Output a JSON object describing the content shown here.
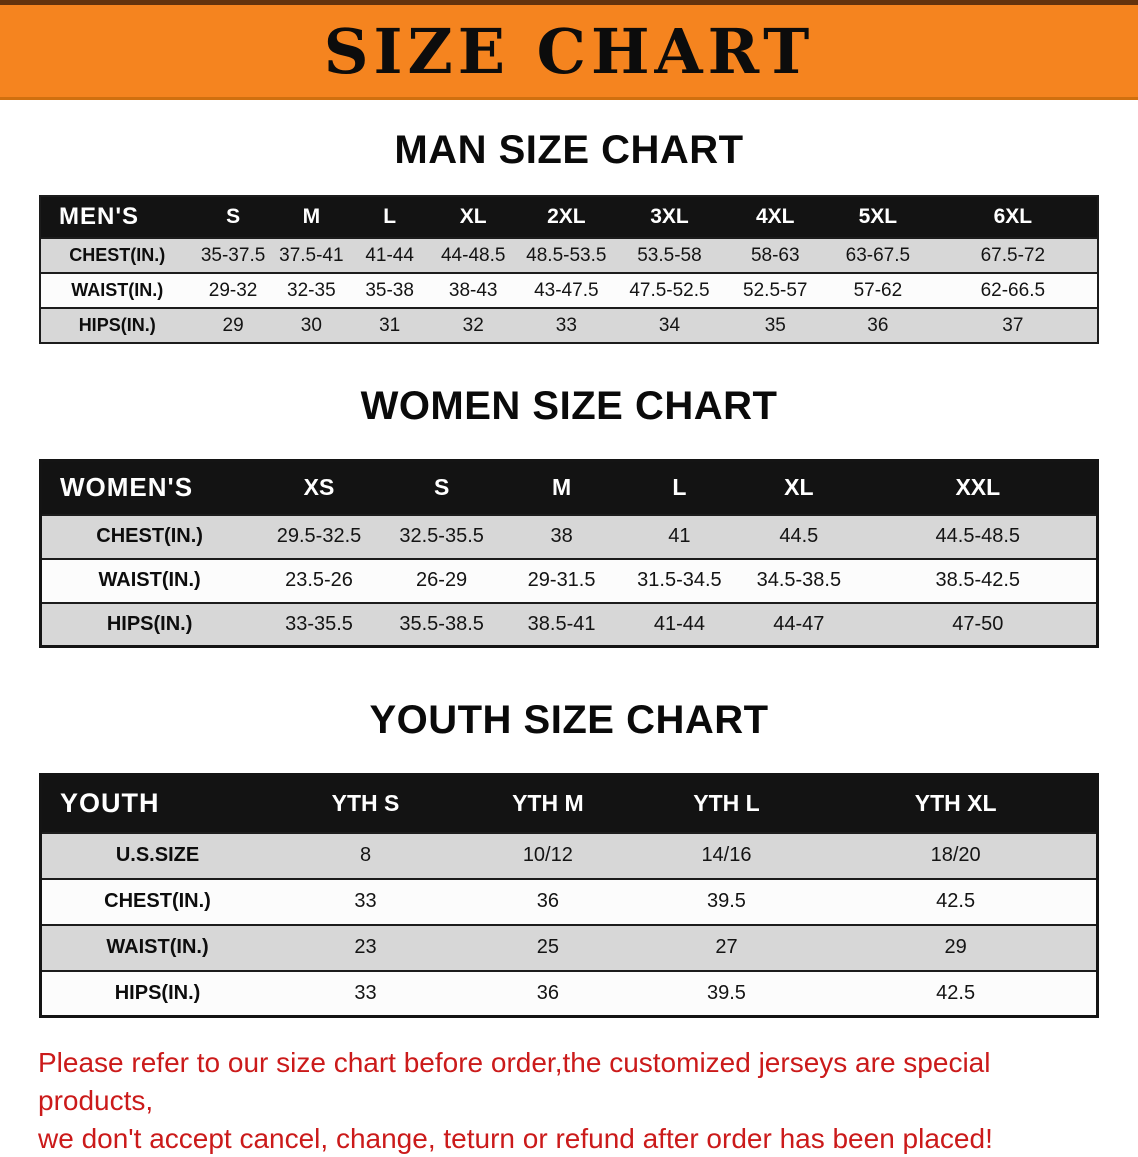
{
  "banner": {
    "title": "SIZE CHART"
  },
  "sections": [
    {
      "heading": "MAN SIZE CHART",
      "table": {
        "header": [
          "MEN'S",
          "S",
          "M",
          "L",
          "XL",
          "2XL",
          "3XL",
          "4XL",
          "5XL",
          "6XL"
        ],
        "rows": [
          [
            "CHEST(IN.)",
            "35-37.5",
            "37.5-41",
            "41-44",
            "44-48.5",
            "48.5-53.5",
            "53.5-58",
            "58-63",
            "63-67.5",
            "67.5-72"
          ],
          [
            "WAIST(IN.)",
            "29-32",
            "32-35",
            "35-38",
            "38-43",
            "43-47.5",
            "47.5-52.5",
            "52.5-57",
            "57-62",
            "62-66.5"
          ],
          [
            "HIPS(IN.)",
            "29",
            "30",
            "31",
            "32",
            "33",
            "34",
            "35",
            "36",
            "37"
          ]
        ]
      }
    },
    {
      "heading": "WOMEN SIZE CHART",
      "table": {
        "header": [
          "WOMEN'S",
          "XS",
          "S",
          "M",
          "L",
          "XL",
          "XXL"
        ],
        "rows": [
          [
            "CHEST(IN.)",
            "29.5-32.5",
            "32.5-35.5",
            "38",
            "41",
            "44.5",
            "44.5-48.5"
          ],
          [
            "WAIST(IN.)",
            "23.5-26",
            "26-29",
            "29-31.5",
            "31.5-34.5",
            "34.5-38.5",
            "38.5-42.5"
          ],
          [
            "HIPS(IN.)",
            "33-35.5",
            "35.5-38.5",
            "38.5-41",
            "41-44",
            "44-47",
            "47-50"
          ]
        ]
      }
    },
    {
      "heading": "YOUTH SIZE CHART",
      "table": {
        "header": [
          "YOUTH",
          "YTH S",
          "YTH M",
          "YTH L",
          "YTH XL"
        ],
        "rows": [
          [
            "U.S.SIZE",
            "8",
            "10/12",
            "14/16",
            "18/20"
          ],
          [
            "CHEST(IN.)",
            "33",
            "36",
            "39.5",
            "42.5"
          ],
          [
            "WAIST(IN.)",
            "23",
            "25",
            "27",
            "29"
          ],
          [
            "HIPS(IN.)",
            "33",
            "36",
            "39.5",
            "42.5"
          ]
        ]
      }
    }
  ],
  "disclaimer": {
    "lines": [
      "Please refer to our size chart before order,the customized jerseys are special products,",
      "we don't accept cancel, change, teturn or refund after order has been placed!"
    ]
  },
  "colors": {
    "banner_bg": "#F5841F",
    "table_header_bg": "#131313",
    "row_stripe": "#D7D7D7",
    "disclaimer_text": "#CB1A1A"
  }
}
